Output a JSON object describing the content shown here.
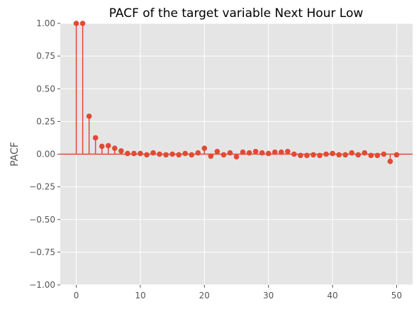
{
  "chart_data": {
    "type": "stem",
    "title": "PACF of the target variable Next Hour Low",
    "xlabel": "",
    "ylabel": "PACF",
    "xlim": [
      -2.5,
      52.5
    ],
    "ylim": [
      -1.0,
      1.0
    ],
    "xticks": [
      0,
      10,
      20,
      30,
      40,
      50
    ],
    "yticks": [
      -1.0,
      -0.75,
      -0.5,
      -0.25,
      0.0,
      0.25,
      0.5,
      0.75,
      1.0
    ],
    "ytick_labels": [
      "−1.00",
      "−0.75",
      "−0.50",
      "−0.25",
      "0.00",
      "0.25",
      "0.50",
      "0.75",
      "1.00"
    ],
    "xtick_labels": [
      "0",
      "10",
      "20",
      "30",
      "40",
      "50"
    ],
    "grid": true,
    "series": [
      {
        "color": "#E24A33",
        "lags": [
          0,
          1,
          2,
          3,
          4,
          5,
          6,
          7,
          8,
          9,
          10,
          11,
          12,
          13,
          14,
          15,
          16,
          17,
          18,
          19,
          20,
          21,
          22,
          23,
          24,
          25,
          26,
          27,
          28,
          29,
          30,
          31,
          32,
          33,
          34,
          35,
          36,
          37,
          38,
          39,
          40,
          41,
          42,
          43,
          44,
          45,
          46,
          47,
          48,
          49,
          50
        ],
        "values": [
          1.0,
          1.0,
          0.29,
          0.125,
          0.06,
          0.065,
          0.045,
          0.025,
          0.005,
          0.005,
          0.005,
          -0.005,
          0.01,
          0.0,
          -0.005,
          0.0,
          -0.005,
          0.005,
          -0.005,
          0.01,
          0.045,
          -0.015,
          0.02,
          -0.005,
          0.01,
          -0.02,
          0.015,
          0.01,
          0.02,
          0.01,
          0.005,
          0.015,
          0.015,
          0.02,
          0.0,
          -0.01,
          -0.01,
          -0.005,
          -0.01,
          0.0,
          0.005,
          -0.005,
          -0.005,
          0.01,
          -0.005,
          0.01,
          -0.01,
          -0.01,
          0.0,
          -0.055,
          -0.005
        ]
      }
    ]
  },
  "style": {
    "background": "#FFFFFF",
    "plot_background": "#E5E5E5",
    "grid_color": "#FFFFFF",
    "series_color": "#E24A33"
  }
}
